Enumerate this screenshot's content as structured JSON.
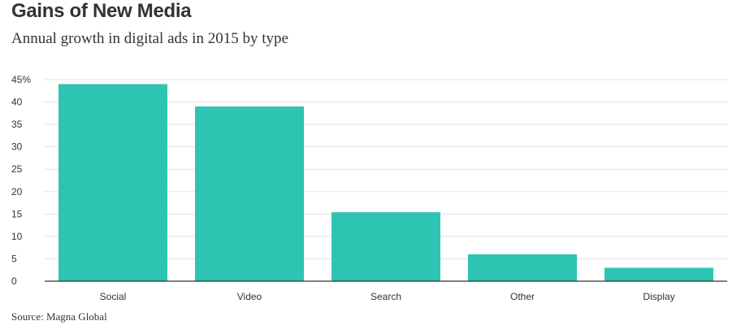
{
  "chart_data": {
    "type": "bar",
    "title": "Gains of New Media",
    "subtitle": "Annual growth in digital ads in 2015 by type",
    "source": "Source: Magna Global",
    "categories": [
      "Social",
      "Video",
      "Search",
      "Other",
      "Display"
    ],
    "values": [
      44,
      39,
      15.4,
      6,
      3
    ],
    "ylim": [
      0,
      45
    ],
    "yticks": [
      0,
      5,
      10,
      15,
      20,
      25,
      30,
      35,
      40,
      45
    ],
    "ytick_labels": [
      "0",
      "5",
      "10",
      "15",
      "20",
      "25",
      "30",
      "35",
      "40",
      "45%"
    ],
    "xlabel": "",
    "ylabel": "",
    "grid": true,
    "bar_color": "#2dc4b2",
    "grid_color": "#e3e3e3",
    "axis_color": "#333333"
  }
}
